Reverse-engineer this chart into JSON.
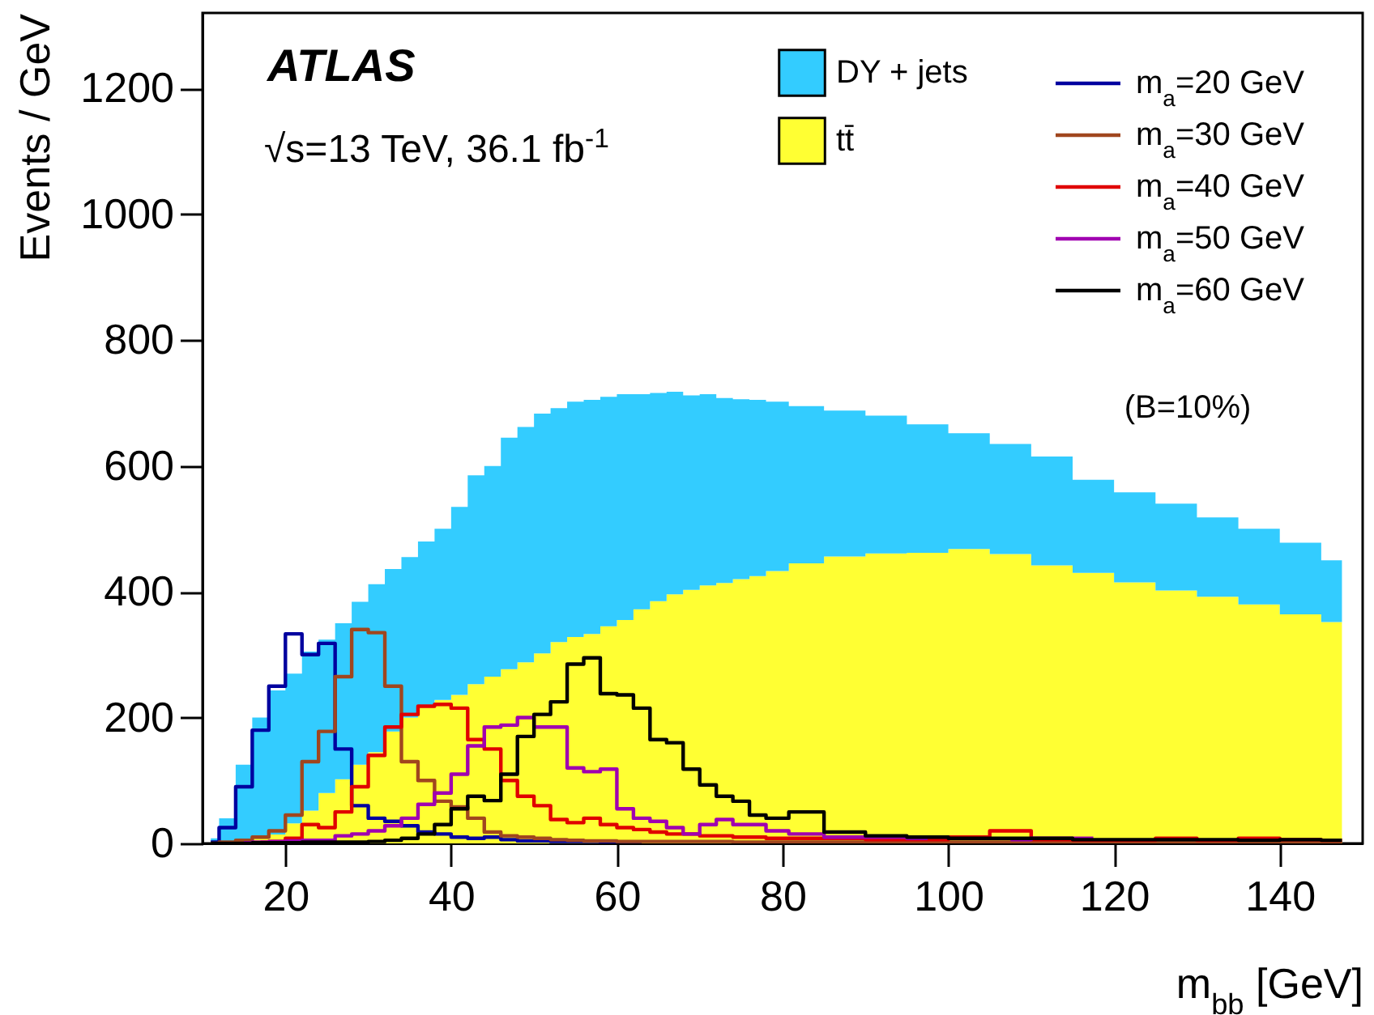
{
  "chart_data": {
    "type": "area",
    "xlabel": "m$_{bb}$ [GeV]",
    "ylabel": "Events / GeV",
    "stacked": true,
    "legend": "top right",
    "grid": false,
    "annotations": [
      "ATLAS",
      "√s=13 TeV, 36.1 fb$^{-1}$",
      "(B=10%)"
    ],
    "xlim": [
      10,
      150
    ],
    "xticks": [
      20,
      40,
      60,
      80,
      100,
      120,
      140
    ],
    "ylim": [
      0,
      1320
    ],
    "yticks": [
      0,
      200,
      400,
      600,
      800,
      1000,
      1200
    ],
    "x": [
      11,
      13,
      15,
      17,
      19,
      21,
      23,
      25,
      27,
      29,
      31,
      33,
      35,
      37,
      39,
      41,
      43,
      45,
      47,
      49,
      51,
      53,
      55,
      57,
      59,
      61,
      63,
      65,
      67,
      69,
      71,
      73,
      75,
      77,
      79,
      82.5,
      87.5,
      92.5,
      97.5,
      102.5,
      107.5,
      112.5,
      117.5,
      122.5,
      127.5,
      132.5,
      137.5,
      142.5,
      147.5
    ],
    "series": [
      {
        "name": "tt̄",
        "color": "#ffff33",
        "values": [
          0,
          1,
          3,
          8,
          14,
          32,
          52,
          80,
          102,
          125,
          145,
          178,
          200,
          218,
          228,
          236,
          253,
          265,
          277,
          288,
          302,
          320,
          328,
          333,
          345,
          355,
          372,
          385,
          396,
          403,
          410,
          414,
          420,
          425,
          433,
          445,
          456,
          461,
          462,
          468,
          460,
          442,
          430,
          415,
          402,
          392,
          380,
          364,
          352
        ]
      },
      {
        "name": "DY + jets",
        "color": "#33ccff",
        "values": [
          8,
          39,
          122,
          192,
          229,
          238,
          253,
          244,
          248,
          259,
          267,
          258,
          255,
          262,
          272,
          299,
          332,
          335,
          368,
          374,
          381,
          372,
          374,
          372,
          365,
          359,
          342,
          331,
          322,
          309,
          304,
          294,
          286,
          280,
          269,
          250,
          232,
          219,
          204,
          184,
          175,
          173,
          148,
          143,
          138,
          126,
          120,
          114,
          98
        ]
      },
      {
        "name": "m$_{a}$=20 GeV",
        "type": "step",
        "color": "#00009f",
        "values": [
          2,
          25,
          90,
          180,
          250,
          333,
          300,
          318,
          150,
          60,
          40,
          35,
          28,
          18,
          15,
          10,
          8,
          10,
          6,
          4,
          4,
          3,
          3,
          3,
          2,
          2,
          2,
          null,
          null,
          null,
          null,
          null,
          null,
          null,
          null,
          null,
          null,
          null,
          null,
          null,
          null,
          null,
          null,
          null,
          null,
          null,
          null,
          null,
          null
        ]
      },
      {
        "name": "m$_{a}$=30 GeV",
        "type": "step",
        "color": "#a0461e",
        "values": [
          0,
          2,
          5,
          10,
          20,
          45,
          130,
          178,
          265,
          340,
          335,
          250,
          130,
          100,
          67,
          58,
          40,
          18,
          12,
          10,
          8,
          6,
          5,
          4,
          4,
          3,
          3,
          3,
          3,
          3,
          3,
          3,
          2,
          2,
          2,
          2,
          2,
          2,
          2,
          2,
          2,
          2,
          2,
          2,
          2,
          2,
          2,
          2,
          2
        ]
      },
      {
        "name": "m$_{a}$=40 GeV",
        "type": "step",
        "color": "#e00000",
        "values": [
          null,
          null,
          null,
          2,
          3,
          8,
          30,
          25,
          50,
          90,
          140,
          185,
          205,
          218,
          221,
          215,
          165,
          150,
          100,
          75,
          60,
          38,
          33,
          40,
          30,
          25,
          22,
          18,
          15,
          15,
          12,
          12,
          10,
          10,
          8,
          8,
          8,
          6,
          6,
          10,
          20,
          6,
          5,
          5,
          8,
          5,
          8,
          6,
          5
        ]
      },
      {
        "name": "m$_{a}$=50 GeV",
        "type": "step",
        "color": "#a000b0",
        "values": [
          null,
          null,
          1,
          2,
          3,
          4,
          5,
          5,
          12,
          15,
          20,
          28,
          40,
          62,
          80,
          110,
          155,
          185,
          188,
          200,
          185,
          185,
          120,
          114,
          118,
          55,
          40,
          35,
          25,
          15,
          30,
          38,
          30,
          30,
          20,
          15,
          10,
          10,
          8,
          null,
          6,
          8,
          8,
          null,
          null,
          null,
          null,
          null,
          null
        ]
      },
      {
        "name": "m$_{a}$=60 GeV",
        "type": "step",
        "color": "#000000",
        "values": [
          0,
          0,
          0,
          1,
          1,
          1,
          2,
          2,
          2,
          2,
          3,
          5,
          8,
          15,
          30,
          55,
          75,
          68,
          110,
          170,
          205,
          225,
          285,
          295,
          238,
          236,
          215,
          165,
          160,
          118,
          93,
          75,
          67,
          45,
          40,
          50,
          18,
          12,
          10,
          8,
          8,
          8,
          6,
          6,
          6,
          6,
          5,
          6,
          5
        ]
      }
    ]
  }
}
